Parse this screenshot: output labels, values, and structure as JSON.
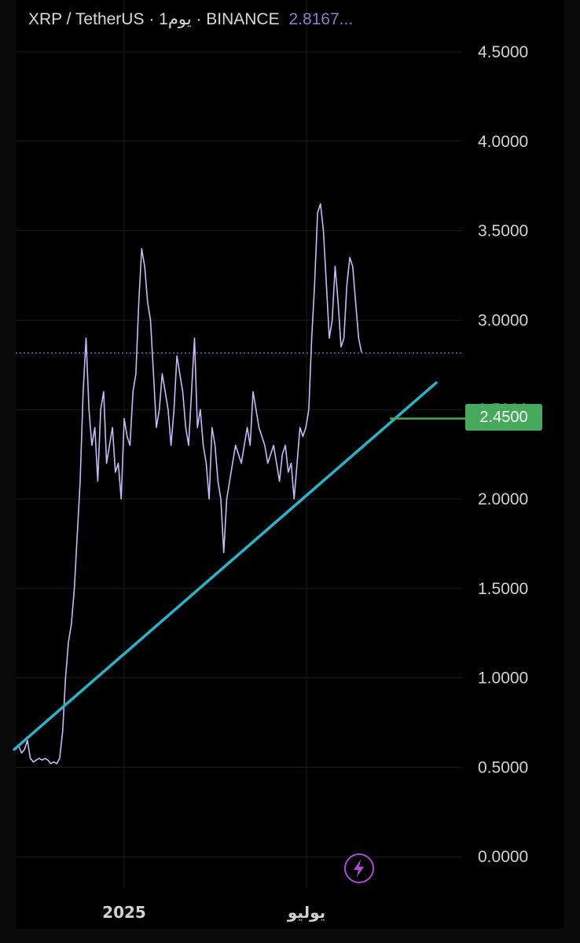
{
  "header": {
    "symbol": "XRP / TetherUS",
    "separator1": "·",
    "interval": "1يوم",
    "separator2": "·",
    "exchange": "BINANCE",
    "price": "2.8167..."
  },
  "colors": {
    "price_line": "#c9b8f5",
    "trendline": "#27b3c9",
    "horizontal_level": "#46a95c",
    "current_price_line": "#7b6bc7",
    "grid": "#1b1b1b"
  },
  "level_badge": {
    "label": "2.4500"
  },
  "lightning_button": {
    "icon": "lightning-icon"
  },
  "chart_data": {
    "type": "line",
    "title": "",
    "xlabel": "",
    "ylabel": "",
    "ylim": [
      -0.15,
      4.85
    ],
    "y_ticks": [
      "4.5000",
      "4.0000",
      "3.5000",
      "3.0000",
      "2.5000",
      "2.0000",
      "1.5000",
      "1.0000",
      "0.5000",
      "0.0000"
    ],
    "x_tick_labels": [
      "2025",
      "يوليو"
    ],
    "current_price": 2.8167,
    "horizontal_level": 2.45,
    "series": [
      {
        "values": [
          0.6,
          0.62,
          0.58,
          0.6,
          0.65,
          0.55,
          0.53,
          0.54,
          0.55,
          0.54,
          0.55,
          0.54,
          0.52,
          0.53,
          0.52,
          0.55,
          0.7,
          1.0,
          1.2,
          1.3,
          1.5,
          1.8,
          2.1,
          2.6,
          2.9,
          2.5,
          2.3,
          2.4,
          2.1,
          2.5,
          2.6,
          2.2,
          2.3,
          2.4,
          2.15,
          2.2,
          2.0,
          2.45,
          2.35,
          2.3,
          2.6,
          2.7,
          3.1,
          3.4,
          3.3,
          3.1,
          3.0,
          2.7,
          2.4,
          2.5,
          2.7,
          2.6,
          2.5,
          2.3,
          2.5,
          2.8,
          2.7,
          2.6,
          2.4,
          2.3,
          2.6,
          2.9,
          2.4,
          2.5,
          2.3,
          2.2,
          2.0,
          2.4,
          2.3,
          2.1,
          2.0,
          1.7,
          2.0,
          2.1,
          2.2,
          2.3,
          2.25,
          2.2,
          2.3,
          2.4,
          2.3,
          2.6,
          2.5,
          2.4,
          2.35,
          2.3,
          2.2,
          2.25,
          2.3,
          2.2,
          2.1,
          2.25,
          2.3,
          2.15,
          2.2,
          2.0,
          2.2,
          2.4,
          2.35,
          2.4,
          2.5,
          2.9,
          3.2,
          3.6,
          3.65,
          3.5,
          3.2,
          2.9,
          3.0,
          3.3,
          3.1,
          2.85,
          2.9,
          3.2,
          3.35,
          3.3,
          3.1,
          2.9,
          2.82
        ]
      }
    ],
    "trendline": {
      "y_start": 0.6,
      "y_end": 2.65
    }
  }
}
